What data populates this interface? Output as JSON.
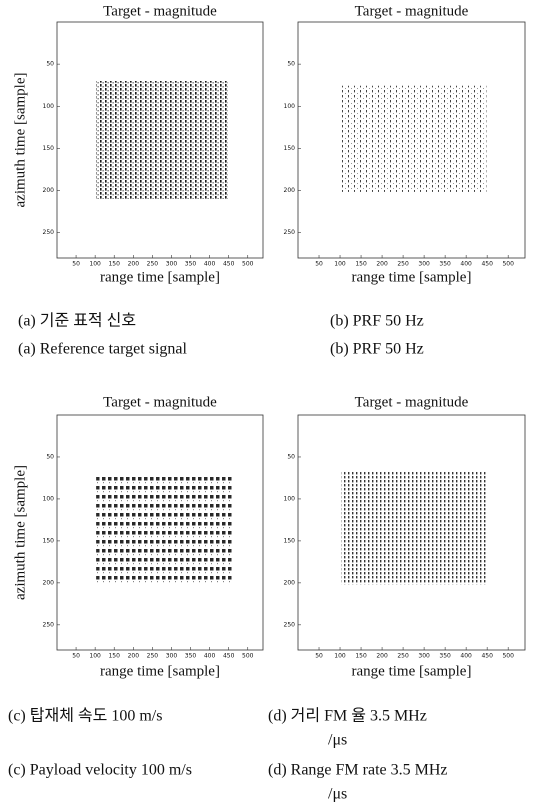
{
  "panels": [
    {
      "title": "Target - magnitude",
      "x_label": "range time [sample]",
      "y_label": "azimuth time [sample]",
      "x_ticks": [
        "50",
        "100",
        "150",
        "200",
        "250",
        "300",
        "350",
        "400",
        "450",
        "500"
      ],
      "y_ticks": [
        "50",
        "100",
        "150",
        "200",
        "250"
      ]
    },
    {
      "title": "Target - magnitude",
      "x_label": "range time [sample]",
      "x_ticks": [
        "50",
        "100",
        "150",
        "200",
        "250",
        "300",
        "350",
        "400",
        "450",
        "500"
      ],
      "y_ticks": [
        "50",
        "100",
        "150",
        "200",
        "250"
      ]
    },
    {
      "title": "Target - magnitude",
      "x_label": "range time [sample]",
      "y_label": "azimuth time [sample]",
      "x_ticks": [
        "50",
        "100",
        "150",
        "200",
        "250",
        "300",
        "350",
        "400",
        "450",
        "500"
      ],
      "y_ticks": [
        "50",
        "100",
        "150",
        "200",
        "250"
      ]
    },
    {
      "title": "Target - magnitude",
      "x_label": "range time [sample]",
      "x_ticks": [
        "50",
        "100",
        "150",
        "200",
        "250",
        "300",
        "350",
        "400",
        "450",
        "500"
      ],
      "y_ticks": [
        "50",
        "100",
        "150",
        "200",
        "250"
      ]
    }
  ],
  "captions": [
    {
      "korean": [
        "(a) 기준 표적 신호"
      ],
      "english": [
        "(a) Reference target signal"
      ]
    },
    {
      "korean": [
        "(b) PRF 50 Hz"
      ],
      "english": [
        "(b) PRF 50 Hz"
      ]
    },
    {
      "korean": [
        "(c) 탑재체 속도 100 m/s"
      ],
      "english": [
        "(c) Payload velocity 100 m/s"
      ]
    },
    {
      "korean": [
        "(d) 거리 FM 율 3.5 MHz",
        "/μs"
      ],
      "english": [
        "(d) Range FM rate 3.5 MHz",
        "/μs"
      ]
    }
  ]
}
